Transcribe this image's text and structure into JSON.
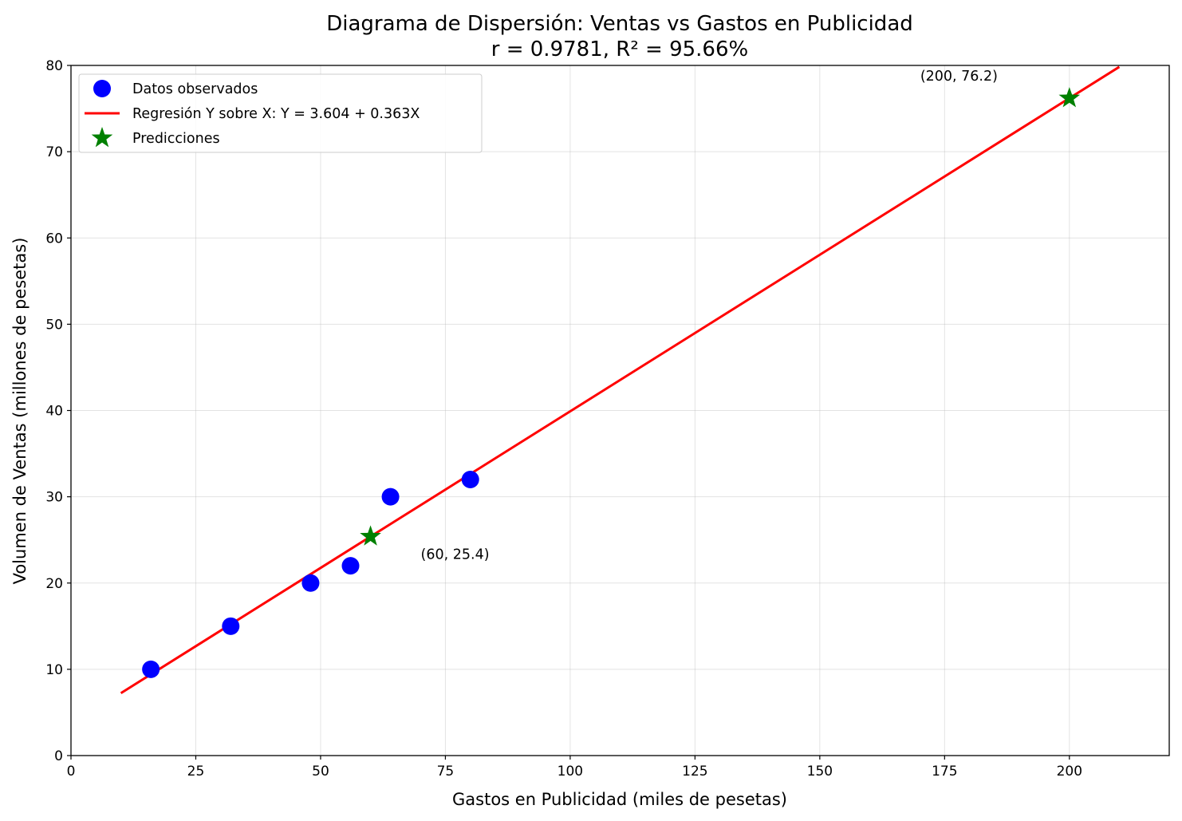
{
  "chart_data": {
    "type": "scatter",
    "title": "Diagrama de Dispersión: Ventas vs Gastos en Publicidad",
    "subtitle": "r = 0.9781, R² = 95.66%",
    "xlabel": "Gastos en Publicidad (miles de pesetas)",
    "ylabel": "Volumen de Ventas (millones de pesetas)",
    "xlim": [
      0,
      220
    ],
    "ylim": [
      0,
      80
    ],
    "xticks": [
      "0",
      "25",
      "50",
      "75",
      "100",
      "125",
      "150",
      "175",
      "200"
    ],
    "yticks": [
      "0",
      "10",
      "20",
      "30",
      "40",
      "50",
      "60",
      "70",
      "80"
    ],
    "grid": true,
    "legend_position": "upper left",
    "series": [
      {
        "name": "Datos observados",
        "kind": "scatter",
        "color": "#0000ff",
        "marker": "circle",
        "x": [
          16,
          32,
          48,
          56,
          64,
          80
        ],
        "y": [
          10,
          15,
          20,
          22,
          30,
          32
        ]
      },
      {
        "name": "Regresión Y sobre X: Y = 3.604 + 0.363X",
        "kind": "line",
        "color": "#ff0000",
        "intercept": 3.604,
        "slope": 0.363,
        "x": [
          10,
          210
        ],
        "y": [
          7.234,
          79.834
        ]
      },
      {
        "name": "Predicciones",
        "kind": "scatter",
        "color": "#008000",
        "marker": "star",
        "x": [
          60,
          200
        ],
        "y": [
          25.4,
          76.2
        ]
      }
    ],
    "annotations": [
      {
        "text": "(60, 25.4)",
        "x": 60,
        "y": 25.4
      },
      {
        "text": "(200, 76.2)",
        "x": 200,
        "y": 76.2
      }
    ]
  }
}
